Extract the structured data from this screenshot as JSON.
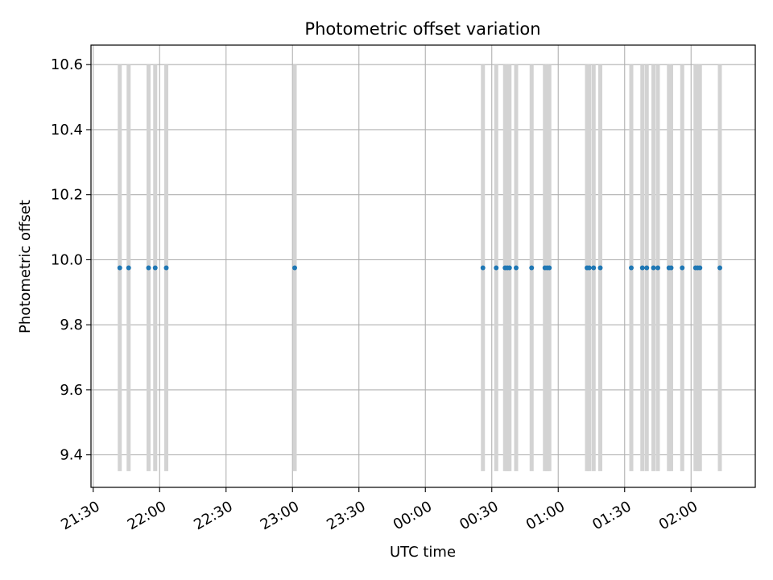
{
  "chart_data": {
    "type": "scatter",
    "title": "Photometric offset variation",
    "xlabel": "UTC time",
    "ylabel": "Photometric offset",
    "x_tick_labels": [
      "21:30",
      "22:00",
      "22:30",
      "23:00",
      "23:30",
      "00:00",
      "00:30",
      "01:00",
      "01:30",
      "02:00"
    ],
    "y_tick_labels": [
      "9.4",
      "9.6",
      "9.8",
      "10.0",
      "10.2",
      "10.4",
      "10.6"
    ],
    "x_ticks": [
      "2024-01-01T21:30",
      "2024-01-01T22:00",
      "2024-01-01T22:30",
      "2024-01-01T23:00",
      "2024-01-01T23:30",
      "2024-01-02T00:00",
      "2024-01-02T00:30",
      "2024-01-02T01:00",
      "2024-01-02T01:30",
      "2024-01-02T02:00"
    ],
    "y_ticks": [
      9.4,
      9.6,
      9.8,
      10.0,
      10.2,
      10.4,
      10.6
    ],
    "xlim": [
      "2024-01-01T21:29",
      "2024-01-02T02:29"
    ],
    "ylim": [
      9.3,
      10.66
    ],
    "grid": true,
    "error_bar_range": [
      9.35,
      10.6
    ],
    "marker_color": "#1f77b4",
    "bar_color": "#d3d3d3",
    "x": [
      "2024-01-01T21:42",
      "2024-01-01T21:46",
      "2024-01-01T21:55",
      "2024-01-01T21:58",
      "2024-01-01T22:03",
      "2024-01-01T23:01",
      "2024-01-02T00:26",
      "2024-01-02T00:32",
      "2024-01-02T00:36",
      "2024-01-02T00:37",
      "2024-01-02T00:38",
      "2024-01-02T00:41",
      "2024-01-02T00:48",
      "2024-01-02T00:54",
      "2024-01-02T00:55",
      "2024-01-02T00:56",
      "2024-01-02T01:13",
      "2024-01-02T01:14",
      "2024-01-02T01:16",
      "2024-01-02T01:19",
      "2024-01-02T01:33",
      "2024-01-02T01:38",
      "2024-01-02T01:40",
      "2024-01-02T01:43",
      "2024-01-02T01:45",
      "2024-01-02T01:50",
      "2024-01-02T01:51",
      "2024-01-02T01:56",
      "2024-01-02T02:02",
      "2024-01-02T02:03",
      "2024-01-02T02:04",
      "2024-01-02T02:13"
    ],
    "y": [
      9.975,
      9.975,
      9.975,
      9.975,
      9.975,
      9.975,
      9.975,
      9.975,
      9.975,
      9.975,
      9.975,
      9.975,
      9.975,
      9.975,
      9.975,
      9.975,
      9.975,
      9.975,
      9.975,
      9.975,
      9.975,
      9.975,
      9.975,
      9.975,
      9.975,
      9.975,
      9.975,
      9.975,
      9.975,
      9.975,
      9.975,
      9.975
    ]
  }
}
